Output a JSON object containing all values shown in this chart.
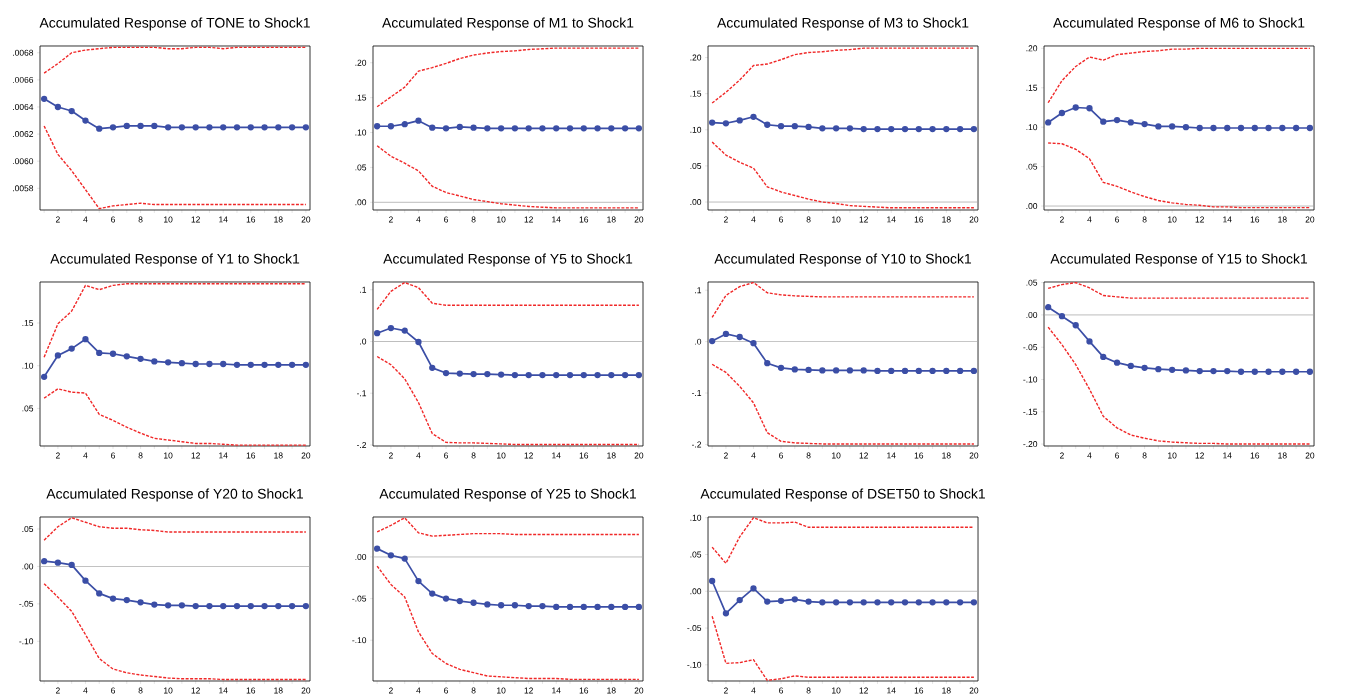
{
  "chart_data": [
    {
      "type": "line",
      "title": "Accumulated Response of TONE to Shock1",
      "x": [
        1,
        2,
        3,
        4,
        5,
        6,
        7,
        8,
        9,
        10,
        11,
        12,
        13,
        14,
        15,
        16,
        17,
        18,
        19,
        20
      ],
      "xlim": [
        0.7,
        20.3
      ],
      "xticks": [
        {
          "value": 1,
          "label": null
        },
        2,
        {
          "value": 3,
          "label": null
        },
        4,
        {
          "value": 5,
          "label": null
        },
        6,
        {
          "value": 7,
          "label": null
        },
        8,
        {
          "value": 9,
          "label": null
        },
        10,
        {
          "value": 11,
          "label": null
        },
        12,
        {
          "value": 13,
          "label": null
        },
        14,
        {
          "value": 15,
          "label": null
        },
        16,
        {
          "value": 17,
          "label": null
        },
        18,
        {
          "value": 19,
          "label": null
        },
        20
      ],
      "ylim": [
        0.00564,
        0.00685
      ],
      "yticks": [
        {
          "value": 0.0058,
          "label": ".0058"
        },
        {
          "value": 0.006,
          "label": ".0060"
        },
        {
          "value": 0.0062,
          "label": ".0062"
        },
        {
          "value": 0.0064,
          "label": ".0064"
        },
        {
          "value": 0.0066,
          "label": ".0066"
        },
        {
          "value": 0.0068,
          "label": ".0068"
        }
      ],
      "series": [
        {
          "color": "#3b4ea6",
          "marker": "circle",
          "line_style": "solid",
          "values": [
            0.00646,
            0.0064,
            0.00637,
            0.0063,
            0.00624,
            0.00625,
            0.00626,
            0.00626,
            0.00626,
            0.00625,
            0.00625,
            0.00625,
            0.00625,
            0.00625,
            0.00625,
            0.00625,
            0.00625,
            0.00625,
            0.00625,
            0.00625
          ]
        },
        {
          "color": "#f02828",
          "marker": "none",
          "line_style": "dashed",
          "values": [
            0.00665,
            0.00672,
            0.0068,
            0.00682,
            0.00683,
            0.00684,
            0.00684,
            0.00684,
            0.00684,
            0.00683,
            0.00683,
            0.00684,
            0.00684,
            0.00683,
            0.00684,
            0.00684,
            0.00684,
            0.00684,
            0.00684,
            0.00684
          ]
        },
        {
          "color": "#f02828",
          "marker": "none",
          "line_style": "dashed",
          "values": [
            0.00626,
            0.00605,
            0.00593,
            0.00579,
            0.00565,
            0.00567,
            0.00568,
            0.00569,
            0.00568,
            0.00568,
            0.00568,
            0.00568,
            0.00568,
            0.00568,
            0.00568,
            0.00568,
            0.00568,
            0.00568,
            0.00568,
            0.00568
          ]
        }
      ]
    },
    {
      "type": "line",
      "title": "Accumulated Response of M1 to Shock1",
      "x": [
        1,
        2,
        3,
        4,
        5,
        6,
        7,
        8,
        9,
        10,
        11,
        12,
        13,
        14,
        15,
        16,
        17,
        18,
        19,
        20
      ],
      "xlim": [
        0.7,
        20.3
      ],
      "xticks": [
        {
          "value": 1,
          "label": null
        },
        2,
        {
          "value": 3,
          "label": null
        },
        4,
        {
          "value": 5,
          "label": null
        },
        6,
        {
          "value": 7,
          "label": null
        },
        8,
        {
          "value": 9,
          "label": null
        },
        10,
        {
          "value": 11,
          "label": null
        },
        12,
        {
          "value": 13,
          "label": null
        },
        14,
        {
          "value": 15,
          "label": null
        },
        16,
        {
          "value": 17,
          "label": null
        },
        18,
        {
          "value": 19,
          "label": null
        },
        20
      ],
      "ylim": [
        -0.011,
        0.224
      ],
      "yticks": [
        {
          "value": 0,
          "label": ".00"
        },
        {
          "value": 0.05,
          "label": ".05"
        },
        {
          "value": 0.1,
          "label": ".10"
        },
        {
          "value": 0.15,
          "label": ".15"
        },
        {
          "value": 0.2,
          "label": ".20"
        }
      ],
      "ref_lines": [
        {
          "axis": "y",
          "value": 0,
          "color": "#a0a0a0"
        }
      ],
      "series": [
        {
          "color": "#3b4ea6",
          "marker": "circle",
          "line_style": "solid",
          "values": [
            0.109,
            0.109,
            0.112,
            0.117,
            0.107,
            0.106,
            0.108,
            0.107,
            0.106,
            0.106,
            0.106,
            0.106,
            0.106,
            0.106,
            0.106,
            0.106,
            0.106,
            0.106,
            0.106,
            0.106
          ]
        },
        {
          "color": "#f02828",
          "marker": "none",
          "line_style": "dashed",
          "values": [
            0.137,
            0.151,
            0.165,
            0.188,
            0.193,
            0.199,
            0.206,
            0.211,
            0.214,
            0.216,
            0.217,
            0.219,
            0.22,
            0.221,
            0.221,
            0.221,
            0.221,
            0.221,
            0.221,
            0.221
          ]
        },
        {
          "color": "#f02828",
          "marker": "none",
          "line_style": "dashed",
          "values": [
            0.081,
            0.066,
            0.056,
            0.045,
            0.023,
            0.014,
            0.009,
            0.004,
            0.001,
            -0.002,
            -0.004,
            -0.006,
            -0.007,
            -0.008,
            -0.008,
            -0.008,
            -0.008,
            -0.008,
            -0.008,
            -0.008
          ]
        }
      ]
    },
    {
      "type": "line",
      "title": "Accumulated Response of M3 to Shock1",
      "x": [
        1,
        2,
        3,
        4,
        5,
        6,
        7,
        8,
        9,
        10,
        11,
        12,
        13,
        14,
        15,
        16,
        17,
        18,
        19,
        20
      ],
      "xlim": [
        0.7,
        20.3
      ],
      "xticks": [
        {
          "value": 1,
          "label": null
        },
        2,
        {
          "value": 3,
          "label": null
        },
        4,
        {
          "value": 5,
          "label": null
        },
        6,
        {
          "value": 7,
          "label": null
        },
        8,
        {
          "value": 9,
          "label": null
        },
        10,
        {
          "value": 11,
          "label": null
        },
        12,
        {
          "value": 13,
          "label": null
        },
        14,
        {
          "value": 15,
          "label": null
        },
        16,
        {
          "value": 17,
          "label": null
        },
        18,
        {
          "value": 19,
          "label": null
        },
        20
      ],
      "ylim": [
        -0.011,
        0.216
      ],
      "yticks": [
        {
          "value": 0,
          "label": ".00"
        },
        {
          "value": 0.05,
          "label": ".05"
        },
        {
          "value": 0.1,
          "label": ".10"
        },
        {
          "value": 0.15,
          "label": ".15"
        },
        {
          "value": 0.2,
          "label": ".20"
        }
      ],
      "ref_lines": [
        {
          "axis": "y",
          "value": 0,
          "color": "#a0a0a0"
        }
      ],
      "series": [
        {
          "color": "#3b4ea6",
          "marker": "circle",
          "line_style": "solid",
          "values": [
            0.11,
            0.109,
            0.113,
            0.118,
            0.107,
            0.105,
            0.105,
            0.104,
            0.102,
            0.102,
            0.102,
            0.101,
            0.101,
            0.101,
            0.101,
            0.101,
            0.101,
            0.101,
            0.101,
            0.101
          ]
        },
        {
          "color": "#f02828",
          "marker": "none",
          "line_style": "dashed",
          "values": [
            0.137,
            0.152,
            0.169,
            0.189,
            0.191,
            0.197,
            0.204,
            0.207,
            0.208,
            0.21,
            0.211,
            0.213,
            0.213,
            0.213,
            0.213,
            0.213,
            0.213,
            0.213,
            0.213,
            0.213
          ]
        },
        {
          "color": "#f02828",
          "marker": "none",
          "line_style": "dashed",
          "values": [
            0.083,
            0.065,
            0.055,
            0.047,
            0.021,
            0.014,
            0.009,
            0.004,
            0.0,
            -0.002,
            -0.005,
            -0.006,
            -0.007,
            -0.008,
            -0.008,
            -0.008,
            -0.008,
            -0.008,
            -0.008,
            -0.008
          ]
        }
      ]
    },
    {
      "type": "line",
      "title": "Accumulated Response of M6 to Shock1",
      "x": [
        1,
        2,
        3,
        4,
        5,
        6,
        7,
        8,
        9,
        10,
        11,
        12,
        13,
        14,
        15,
        16,
        17,
        18,
        19,
        20
      ],
      "xlim": [
        0.7,
        20.3
      ],
      "xticks": [
        {
          "value": 1,
          "label": null
        },
        2,
        {
          "value": 3,
          "label": null
        },
        4,
        {
          "value": 5,
          "label": null
        },
        6,
        {
          "value": 7,
          "label": null
        },
        8,
        {
          "value": 9,
          "label": null
        },
        10,
        {
          "value": 11,
          "label": null
        },
        12,
        {
          "value": 13,
          "label": null
        },
        14,
        {
          "value": 15,
          "label": null
        },
        16,
        {
          "value": 17,
          "label": null
        },
        18,
        {
          "value": 19,
          "label": null
        },
        20
      ],
      "ylim": [
        -0.005,
        0.203
      ],
      "yticks": [
        {
          "value": 0,
          "label": ".00"
        },
        {
          "value": 0.05,
          "label": ".05"
        },
        {
          "value": 0.1,
          "label": ".10"
        },
        {
          "value": 0.15,
          "label": ".15"
        },
        {
          "value": 0.2,
          "label": ".20"
        }
      ],
      "ref_lines": [
        {
          "axis": "y",
          "value": 0,
          "color": "#a0a0a0"
        }
      ],
      "series": [
        {
          "color": "#3b4ea6",
          "marker": "circle",
          "line_style": "solid",
          "values": [
            0.106,
            0.118,
            0.125,
            0.124,
            0.107,
            0.109,
            0.106,
            0.104,
            0.101,
            0.101,
            0.1,
            0.099,
            0.099,
            0.099,
            0.099,
            0.099,
            0.099,
            0.099,
            0.099,
            0.099
          ]
        },
        {
          "color": "#f02828",
          "marker": "none",
          "line_style": "dashed",
          "values": [
            0.131,
            0.159,
            0.177,
            0.189,
            0.185,
            0.192,
            0.194,
            0.196,
            0.197,
            0.199,
            0.199,
            0.2,
            0.2,
            0.2,
            0.2,
            0.2,
            0.2,
            0.2,
            0.2,
            0.2
          ]
        },
        {
          "color": "#f02828",
          "marker": "none",
          "line_style": "dashed",
          "values": [
            0.08,
            0.079,
            0.072,
            0.06,
            0.03,
            0.025,
            0.018,
            0.012,
            0.007,
            0.004,
            0.002,
            0.001,
            -0.001,
            -0.001,
            -0.002,
            -0.002,
            -0.002,
            -0.002,
            -0.002,
            -0.002
          ]
        }
      ]
    },
    {
      "type": "line",
      "title": "Accumulated Response of Y1 to Shock1",
      "x": [
        1,
        2,
        3,
        4,
        5,
        6,
        7,
        8,
        9,
        10,
        11,
        12,
        13,
        14,
        15,
        16,
        17,
        18,
        19,
        20
      ],
      "xlim": [
        0.7,
        20.3
      ],
      "xticks": [
        {
          "value": 1,
          "label": null
        },
        2,
        {
          "value": 3,
          "label": null
        },
        4,
        {
          "value": 5,
          "label": null
        },
        6,
        {
          "value": 7,
          "label": null
        },
        8,
        {
          "value": 9,
          "label": null
        },
        10,
        {
          "value": 11,
          "label": null
        },
        12,
        {
          "value": 13,
          "label": null
        },
        14,
        {
          "value": 15,
          "label": null
        },
        16,
        {
          "value": 17,
          "label": null
        },
        18,
        {
          "value": 19,
          "label": null
        },
        20
      ],
      "ylim": [
        0.006,
        0.198
      ],
      "yticks": [
        {
          "value": 0.05,
          "label": ".05"
        },
        {
          "value": 0.1,
          "label": ".10"
        },
        {
          "value": 0.15,
          "label": ".15"
        }
      ],
      "series": [
        {
          "color": "#3b4ea6",
          "marker": "circle",
          "line_style": "solid",
          "values": [
            0.087,
            0.112,
            0.12,
            0.131,
            0.115,
            0.114,
            0.111,
            0.108,
            0.105,
            0.104,
            0.103,
            0.102,
            0.102,
            0.102,
            0.101,
            0.101,
            0.101,
            0.101,
            0.101,
            0.101
          ]
        },
        {
          "color": "#f02828",
          "marker": "none",
          "line_style": "dashed",
          "values": [
            0.11,
            0.149,
            0.164,
            0.194,
            0.189,
            0.194,
            0.196,
            0.196,
            0.196,
            0.196,
            0.196,
            0.196,
            0.196,
            0.196,
            0.196,
            0.196,
            0.196,
            0.196,
            0.196,
            0.196
          ]
        },
        {
          "color": "#f02828",
          "marker": "none",
          "line_style": "dashed",
          "values": [
            0.062,
            0.073,
            0.069,
            0.068,
            0.043,
            0.036,
            0.028,
            0.021,
            0.015,
            0.013,
            0.011,
            0.009,
            0.009,
            0.008,
            0.007,
            0.007,
            0.007,
            0.007,
            0.007,
            0.007
          ]
        }
      ]
    },
    {
      "type": "line",
      "title": "Accumulated Response of Y5 to Shock1",
      "x": [
        1,
        2,
        3,
        4,
        5,
        6,
        7,
        8,
        9,
        10,
        11,
        12,
        13,
        14,
        15,
        16,
        17,
        18,
        19,
        20
      ],
      "xlim": [
        0.7,
        20.3
      ],
      "xticks": [
        {
          "value": 1,
          "label": null
        },
        2,
        {
          "value": 3,
          "label": null
        },
        4,
        {
          "value": 5,
          "label": null
        },
        6,
        {
          "value": 7,
          "label": null
        },
        8,
        {
          "value": 9,
          "label": null
        },
        10,
        {
          "value": 11,
          "label": null
        },
        12,
        {
          "value": 13,
          "label": null
        },
        14,
        {
          "value": 15,
          "label": null
        },
        16,
        {
          "value": 17,
          "label": null
        },
        18,
        {
          "value": 19,
          "label": null
        },
        20
      ],
      "ylim": [
        -0.202,
        0.115
      ],
      "yticks": [
        {
          "value": -0.2,
          "label": "-.2"
        },
        {
          "value": -0.1,
          "label": "-.1"
        },
        {
          "value": 0,
          "label": ".0"
        },
        {
          "value": 0.1,
          "label": ".1"
        }
      ],
      "ref_lines": [
        {
          "axis": "y",
          "value": 0,
          "color": "#a0a0a0"
        }
      ],
      "series": [
        {
          "color": "#3b4ea6",
          "marker": "circle",
          "line_style": "solid",
          "values": [
            0.016,
            0.026,
            0.021,
            -0.001,
            -0.051,
            -0.061,
            -0.062,
            -0.063,
            -0.063,
            -0.064,
            -0.065,
            -0.065,
            -0.065,
            -0.065,
            -0.065,
            -0.065,
            -0.065,
            -0.065,
            -0.065,
            -0.065
          ]
        },
        {
          "color": "#f02828",
          "marker": "none",
          "line_style": "dashed",
          "values": [
            0.062,
            0.097,
            0.114,
            0.104,
            0.074,
            0.07,
            0.07,
            0.07,
            0.07,
            0.07,
            0.07,
            0.07,
            0.07,
            0.07,
            0.07,
            0.07,
            0.07,
            0.07,
            0.07,
            0.07
          ]
        },
        {
          "color": "#f02828",
          "marker": "none",
          "line_style": "dashed",
          "values": [
            -0.029,
            -0.045,
            -0.072,
            -0.118,
            -0.178,
            -0.195,
            -0.196,
            -0.196,
            -0.197,
            -0.198,
            -0.199,
            -0.199,
            -0.199,
            -0.199,
            -0.199,
            -0.199,
            -0.199,
            -0.199,
            -0.199,
            -0.199
          ]
        }
      ]
    },
    {
      "type": "line",
      "title": "Accumulated Response of Y10 to Shock1",
      "x": [
        1,
        2,
        3,
        4,
        5,
        6,
        7,
        8,
        9,
        10,
        11,
        12,
        13,
        14,
        15,
        16,
        17,
        18,
        19,
        20
      ],
      "xlim": [
        0.7,
        20.3
      ],
      "xticks": [
        {
          "value": 1,
          "label": null
        },
        2,
        {
          "value": 3,
          "label": null
        },
        4,
        {
          "value": 5,
          "label": null
        },
        6,
        {
          "value": 7,
          "label": null
        },
        8,
        {
          "value": 9,
          "label": null
        },
        10,
        {
          "value": 11,
          "label": null
        },
        12,
        {
          "value": 13,
          "label": null
        },
        14,
        {
          "value": 15,
          "label": null
        },
        16,
        {
          "value": 17,
          "label": null
        },
        18,
        {
          "value": 19,
          "label": null
        },
        20
      ],
      "ylim": [
        -0.203,
        0.116
      ],
      "yticks": [
        {
          "value": -0.2,
          "label": "-.2"
        },
        {
          "value": -0.1,
          "label": "-.1"
        },
        {
          "value": 0,
          "label": ".0"
        },
        {
          "value": 0.1,
          "label": ".1"
        }
      ],
      "ref_lines": [
        {
          "axis": "y",
          "value": 0,
          "color": "#a0a0a0"
        }
      ],
      "series": [
        {
          "color": "#3b4ea6",
          "marker": "circle",
          "line_style": "solid",
          "values": [
            0.001,
            0.015,
            0.009,
            -0.003,
            -0.042,
            -0.051,
            -0.054,
            -0.055,
            -0.056,
            -0.056,
            -0.056,
            -0.056,
            -0.057,
            -0.057,
            -0.057,
            -0.057,
            -0.057,
            -0.057,
            -0.057,
            -0.057
          ]
        },
        {
          "color": "#f02828",
          "marker": "none",
          "line_style": "dashed",
          "values": [
            0.047,
            0.09,
            0.107,
            0.115,
            0.095,
            0.091,
            0.089,
            0.088,
            0.087,
            0.087,
            0.087,
            0.087,
            0.087,
            0.087,
            0.087,
            0.087,
            0.087,
            0.087,
            0.087,
            0.087
          ]
        },
        {
          "color": "#f02828",
          "marker": "none",
          "line_style": "dashed",
          "values": [
            -0.044,
            -0.06,
            -0.087,
            -0.119,
            -0.177,
            -0.194,
            -0.197,
            -0.198,
            -0.199,
            -0.199,
            -0.199,
            -0.199,
            -0.199,
            -0.199,
            -0.199,
            -0.199,
            -0.199,
            -0.199,
            -0.199,
            -0.199
          ]
        }
      ]
    },
    {
      "type": "line",
      "title": "Accumulated Response of Y15 to Shock1",
      "x": [
        1,
        2,
        3,
        4,
        5,
        6,
        7,
        8,
        9,
        10,
        11,
        12,
        13,
        14,
        15,
        16,
        17,
        18,
        19,
        20
      ],
      "xlim": [
        0.7,
        20.3
      ],
      "xticks": [
        {
          "value": 1,
          "label": null
        },
        2,
        {
          "value": 3,
          "label": null
        },
        4,
        {
          "value": 5,
          "label": null
        },
        6,
        {
          "value": 7,
          "label": null
        },
        8,
        {
          "value": 9,
          "label": null
        },
        10,
        {
          "value": 11,
          "label": null
        },
        12,
        {
          "value": 13,
          "label": null
        },
        14,
        {
          "value": 15,
          "label": null
        },
        16,
        {
          "value": 17,
          "label": null
        },
        18,
        {
          "value": 19,
          "label": null
        },
        20
      ],
      "ylim": [
        -0.203,
        0.051
      ],
      "yticks": [
        {
          "value": -0.2,
          "label": "-.20"
        },
        {
          "value": -0.15,
          "label": "-.15"
        },
        {
          "value": -0.1,
          "label": "-.10"
        },
        {
          "value": -0.05,
          "label": "-.05"
        },
        {
          "value": 0,
          "label": ".00"
        },
        {
          "value": 0.05,
          "label": ".05"
        }
      ],
      "ref_lines": [
        {
          "axis": "y",
          "value": 0,
          "color": "#a0a0a0"
        }
      ],
      "series": [
        {
          "color": "#3b4ea6",
          "marker": "circle",
          "line_style": "solid",
          "values": [
            0.012,
            -0.002,
            -0.016,
            -0.041,
            -0.065,
            -0.074,
            -0.079,
            -0.082,
            -0.084,
            -0.085,
            -0.086,
            -0.087,
            -0.087,
            -0.087,
            -0.088,
            -0.088,
            -0.088,
            -0.088,
            -0.088,
            -0.088
          ]
        },
        {
          "color": "#f02828",
          "marker": "none",
          "line_style": "dashed",
          "values": [
            0.041,
            0.047,
            0.05,
            0.042,
            0.03,
            0.028,
            0.026,
            0.026,
            0.026,
            0.026,
            0.026,
            0.026,
            0.026,
            0.026,
            0.026,
            0.026,
            0.026,
            0.026,
            0.026,
            0.026
          ]
        },
        {
          "color": "#f02828",
          "marker": "none",
          "line_style": "dashed",
          "values": [
            -0.019,
            -0.046,
            -0.077,
            -0.115,
            -0.157,
            -0.175,
            -0.186,
            -0.191,
            -0.195,
            -0.197,
            -0.198,
            -0.199,
            -0.199,
            -0.2,
            -0.2,
            -0.2,
            -0.2,
            -0.2,
            -0.2,
            -0.2
          ]
        }
      ]
    },
    {
      "type": "line",
      "title": "Accumulated Response of Y20 to Shock1",
      "x": [
        1,
        2,
        3,
        4,
        5,
        6,
        7,
        8,
        9,
        10,
        11,
        12,
        13,
        14,
        15,
        16,
        17,
        18,
        19,
        20
      ],
      "xlim": [
        0.7,
        20.3
      ],
      "xticks": [
        {
          "value": 1,
          "label": null
        },
        2,
        {
          "value": 3,
          "label": null
        },
        4,
        {
          "value": 5,
          "label": null
        },
        6,
        {
          "value": 7,
          "label": null
        },
        8,
        {
          "value": 9,
          "label": null
        },
        10,
        {
          "value": 11,
          "label": null
        },
        12,
        {
          "value": 13,
          "label": null
        },
        14,
        {
          "value": 15,
          "label": null
        },
        16,
        {
          "value": 17,
          "label": null
        },
        18,
        {
          "value": 19,
          "label": null
        },
        20
      ],
      "ylim": [
        -0.153,
        0.066
      ],
      "yticks": [
        {
          "value": -0.1,
          "label": "-.10"
        },
        {
          "value": -0.05,
          "label": "-.05"
        },
        {
          "value": 0,
          "label": ".00"
        },
        {
          "value": 0.05,
          "label": ".05"
        }
      ],
      "ref_lines": [
        {
          "axis": "y",
          "value": 0,
          "color": "#a0a0a0"
        }
      ],
      "series": [
        {
          "color": "#3b4ea6",
          "marker": "circle",
          "line_style": "solid",
          "values": [
            0.007,
            0.005,
            0.002,
            -0.019,
            -0.036,
            -0.043,
            -0.045,
            -0.048,
            -0.051,
            -0.052,
            -0.052,
            -0.053,
            -0.053,
            -0.053,
            -0.053,
            -0.053,
            -0.053,
            -0.053,
            -0.053,
            -0.053
          ]
        },
        {
          "color": "#f02828",
          "marker": "none",
          "line_style": "dashed",
          "values": [
            0.035,
            0.053,
            0.065,
            0.059,
            0.053,
            0.051,
            0.051,
            0.049,
            0.048,
            0.046,
            0.046,
            0.046,
            0.046,
            0.046,
            0.046,
            0.046,
            0.046,
            0.046,
            0.046,
            0.046
          ]
        },
        {
          "color": "#f02828",
          "marker": "none",
          "line_style": "dashed",
          "values": [
            -0.023,
            -0.041,
            -0.06,
            -0.091,
            -0.123,
            -0.137,
            -0.142,
            -0.145,
            -0.147,
            -0.149,
            -0.15,
            -0.15,
            -0.15,
            -0.151,
            -0.151,
            -0.151,
            -0.151,
            -0.151,
            -0.151,
            -0.151
          ]
        }
      ]
    },
    {
      "type": "line",
      "title": "Accumulated Response of Y25 to Shock1",
      "x": [
        1,
        2,
        3,
        4,
        5,
        6,
        7,
        8,
        9,
        10,
        11,
        12,
        13,
        14,
        15,
        16,
        17,
        18,
        19,
        20
      ],
      "xlim": [
        0.7,
        20.3
      ],
      "xticks": [
        {
          "value": 1,
          "label": null
        },
        2,
        {
          "value": 3,
          "label": null
        },
        4,
        {
          "value": 5,
          "label": null
        },
        6,
        {
          "value": 7,
          "label": null
        },
        8,
        {
          "value": 9,
          "label": null
        },
        10,
        {
          "value": 11,
          "label": null
        },
        12,
        {
          "value": 13,
          "label": null
        },
        14,
        {
          "value": 15,
          "label": null
        },
        16,
        {
          "value": 17,
          "label": null
        },
        18,
        {
          "value": 19,
          "label": null
        },
        20
      ],
      "ylim": [
        -0.149,
        0.048
      ],
      "yticks": [
        {
          "value": -0.1,
          "label": "-.10"
        },
        {
          "value": -0.05,
          "label": "-.05"
        },
        {
          "value": 0,
          "label": ".00"
        }
      ],
      "ref_lines": [
        {
          "axis": "y",
          "value": 0,
          "color": "#a0a0a0"
        }
      ],
      "series": [
        {
          "color": "#3b4ea6",
          "marker": "circle",
          "line_style": "solid",
          "values": [
            0.01,
            0.002,
            -0.002,
            -0.029,
            -0.044,
            -0.05,
            -0.053,
            -0.055,
            -0.057,
            -0.058,
            -0.058,
            -0.059,
            -0.059,
            -0.06,
            -0.06,
            -0.06,
            -0.06,
            -0.06,
            -0.06,
            -0.06
          ]
        },
        {
          "color": "#f02828",
          "marker": "none",
          "line_style": "dashed",
          "values": [
            0.03,
            0.038,
            0.047,
            0.029,
            0.025,
            0.026,
            0.027,
            0.028,
            0.028,
            0.028,
            0.027,
            0.027,
            0.027,
            0.027,
            0.027,
            0.027,
            0.027,
            0.027,
            0.027,
            0.027
          ]
        },
        {
          "color": "#f02828",
          "marker": "none",
          "line_style": "dashed",
          "values": [
            -0.011,
            -0.033,
            -0.048,
            -0.09,
            -0.116,
            -0.128,
            -0.135,
            -0.139,
            -0.143,
            -0.144,
            -0.145,
            -0.146,
            -0.146,
            -0.146,
            -0.147,
            -0.147,
            -0.147,
            -0.147,
            -0.147,
            -0.147
          ]
        }
      ]
    },
    {
      "type": "line",
      "title": "Accumulated Response of DSET50 to Shock1",
      "x": [
        1,
        2,
        3,
        4,
        5,
        6,
        7,
        8,
        9,
        10,
        11,
        12,
        13,
        14,
        15,
        16,
        17,
        18,
        19,
        20
      ],
      "xlim": [
        0.7,
        20.3
      ],
      "xticks": [
        {
          "value": 1,
          "label": null
        },
        2,
        {
          "value": 3,
          "label": null
        },
        4,
        {
          "value": 5,
          "label": null
        },
        6,
        {
          "value": 7,
          "label": null
        },
        8,
        {
          "value": 9,
          "label": null
        },
        10,
        {
          "value": 11,
          "label": null
        },
        12,
        {
          "value": 13,
          "label": null
        },
        14,
        {
          "value": 15,
          "label": null
        },
        16,
        {
          "value": 17,
          "label": null
        },
        18,
        {
          "value": 19,
          "label": null
        },
        20
      ],
      "ylim": [
        -0.122,
        0.101
      ],
      "yticks": [
        {
          "value": -0.1,
          "label": "-.10"
        },
        {
          "value": -0.05,
          "label": "-.05"
        },
        {
          "value": 0,
          "label": ".00"
        },
        {
          "value": 0.05,
          "label": ".05"
        },
        {
          "value": 0.1,
          "label": ".10"
        }
      ],
      "ref_lines": [
        {
          "axis": "y",
          "value": 0,
          "color": "#a0a0a0"
        }
      ],
      "series": [
        {
          "color": "#3b4ea6",
          "marker": "circle",
          "line_style": "solid",
          "values": [
            0.014,
            -0.03,
            -0.012,
            0.004,
            -0.014,
            -0.013,
            -0.011,
            -0.014,
            -0.015,
            -0.015,
            -0.015,
            -0.015,
            -0.015,
            -0.015,
            -0.015,
            -0.015,
            -0.015,
            -0.015,
            -0.015,
            -0.015
          ]
        },
        {
          "color": "#f02828",
          "marker": "none",
          "line_style": "dashed",
          "values": [
            0.06,
            0.038,
            0.074,
            0.1,
            0.093,
            0.093,
            0.094,
            0.087,
            0.087,
            0.087,
            0.087,
            0.087,
            0.087,
            0.087,
            0.087,
            0.087,
            0.087,
            0.087,
            0.087,
            0.087
          ]
        },
        {
          "color": "#f02828",
          "marker": "none",
          "line_style": "dashed",
          "values": [
            -0.034,
            -0.098,
            -0.097,
            -0.093,
            -0.121,
            -0.119,
            -0.115,
            -0.117,
            -0.117,
            -0.117,
            -0.117,
            -0.117,
            -0.117,
            -0.117,
            -0.117,
            -0.117,
            -0.117,
            -0.117,
            -0.117,
            -0.117
          ]
        }
      ]
    }
  ]
}
